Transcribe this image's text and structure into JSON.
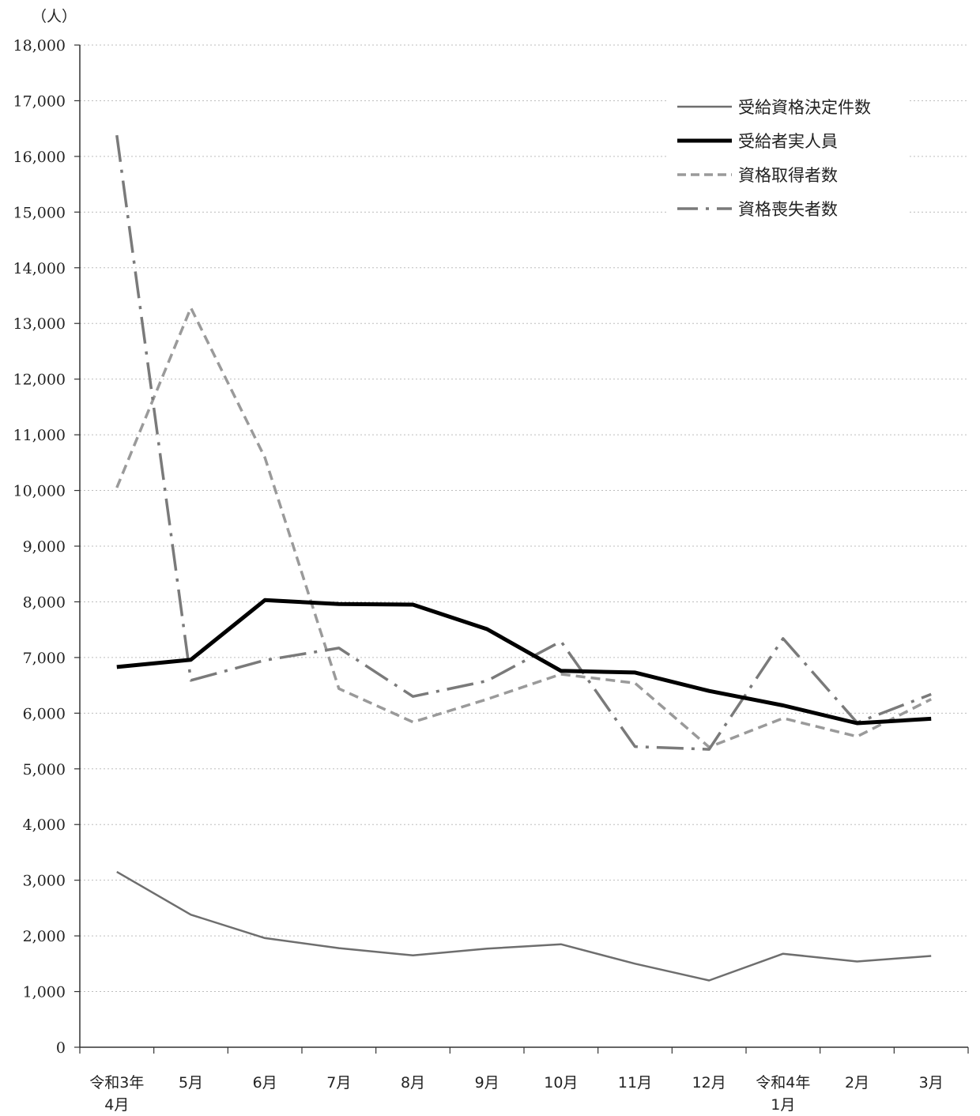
{
  "chart_data": {
    "type": "line",
    "unit_label": "（人）",
    "categories": [
      [
        "令和3年",
        "4月"
      ],
      [
        "5月"
      ],
      [
        "6月"
      ],
      [
        "7月"
      ],
      [
        "8月"
      ],
      [
        "9月"
      ],
      [
        "10月"
      ],
      [
        "11月"
      ],
      [
        "12月"
      ],
      [
        "令和4年",
        "1月"
      ],
      [
        "2月"
      ],
      [
        "3月"
      ]
    ],
    "ylim": [
      0,
      18000
    ],
    "yticks": [
      0,
      1000,
      2000,
      3000,
      4000,
      5000,
      6000,
      7000,
      8000,
      9000,
      10000,
      11000,
      12000,
      13000,
      14000,
      15000,
      16000,
      17000,
      18000
    ],
    "ytick_labels": [
      "0",
      "1,000",
      "2,000",
      "3,000",
      "4,000",
      "5,000",
      "6,000",
      "7,000",
      "8,000",
      "9,000",
      "10,000",
      "11,000",
      "12,000",
      "13,000",
      "14,000",
      "15,000",
      "16,000",
      "17,000",
      "18,000"
    ],
    "grid": "horizontal dotted",
    "legend_position": "top-right",
    "series": [
      {
        "name": "受給資格決定件数",
        "style": "solid-thin",
        "color": "#6e6e6e",
        "values": [
          3150,
          2380,
          1960,
          1780,
          1650,
          1770,
          1850,
          1500,
          1200,
          1680,
          1540,
          1640
        ]
      },
      {
        "name": "受給者実人員",
        "style": "solid-thick",
        "color": "#000000",
        "values": [
          6830,
          6960,
          8030,
          7960,
          7950,
          7510,
          6760,
          6730,
          6400,
          6140,
          5820,
          5900
        ]
      },
      {
        "name": "資格取得者数",
        "style": "dashed",
        "color": "#9a9a9a",
        "values": [
          10050,
          13280,
          10590,
          6440,
          5840,
          6250,
          6700,
          6540,
          5390,
          5910,
          5580,
          6250
        ]
      },
      {
        "name": "資格喪失者数",
        "style": "dash-dot",
        "color": "#7a7a7a",
        "values": [
          16380,
          6590,
          6950,
          7170,
          6300,
          6580,
          7290,
          5400,
          5350,
          7340,
          5830,
          6340
        ]
      }
    ]
  }
}
